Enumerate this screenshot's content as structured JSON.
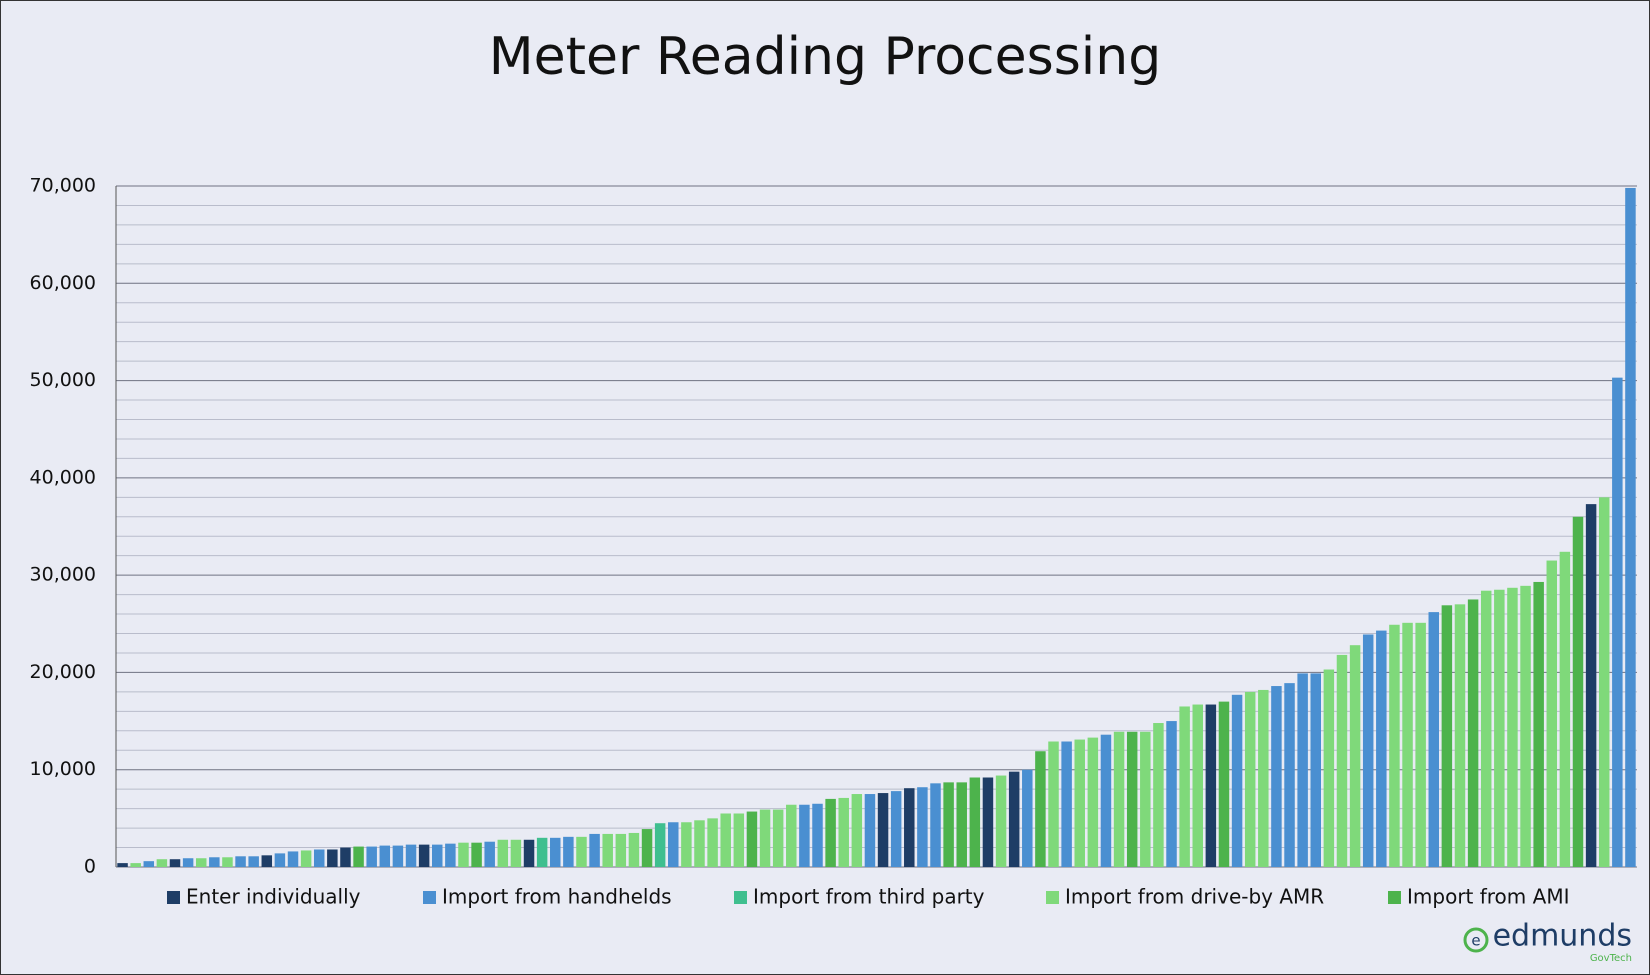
{
  "chart_data": {
    "type": "bar",
    "title": "Meter Reading Processing",
    "ylim": [
      0,
      70000
    ],
    "yticks": [
      {
        "value": 0,
        "label": "0"
      },
      {
        "value": 10000,
        "label": "10,000"
      },
      {
        "value": 20000,
        "label": "20,000"
      },
      {
        "value": 30000,
        "label": "30,000"
      },
      {
        "value": 40000,
        "label": "40,000"
      },
      {
        "value": 50000,
        "label": "50,000"
      },
      {
        "value": 60000,
        "label": "60,000"
      },
      {
        "value": 70000,
        "label": "70,000"
      }
    ],
    "minor_yticks": [
      2000,
      4000,
      6000,
      8000,
      12000,
      14000,
      16000,
      18000,
      22000,
      24000,
      26000,
      28000,
      32000,
      34000,
      36000,
      38000,
      42000,
      44000,
      46000,
      48000,
      52000,
      54000,
      56000,
      58000,
      62000,
      64000,
      66000,
      68000
    ],
    "grid": true,
    "legend": "bottom",
    "series": [
      {
        "name": "Enter individually",
        "color": "#1e3d66",
        "values": [
          400,
          null,
          null,
          null,
          800,
          null,
          null,
          null,
          null,
          null,
          null,
          1200,
          null,
          null,
          null,
          null,
          1800,
          2000,
          null,
          null,
          null,
          null,
          null,
          2300,
          null,
          null,
          null,
          null,
          null,
          null,
          null,
          2800,
          null,
          null,
          null,
          null,
          null,
          null,
          null,
          null,
          null,
          null,
          null,
          null,
          null,
          null,
          null,
          null,
          null,
          null,
          null,
          null,
          null,
          null,
          null,
          null,
          null,
          null,
          7600,
          null,
          8100,
          null,
          null,
          null,
          null,
          null,
          9200,
          null,
          9800,
          null,
          null,
          null,
          null,
          null,
          null,
          null,
          null,
          null,
          null,
          null,
          null,
          null,
          null,
          16700,
          null,
          null,
          null,
          null,
          null,
          null,
          null,
          null,
          null,
          null,
          null,
          null,
          null,
          null,
          null,
          null,
          null,
          null,
          null,
          null,
          null,
          null,
          null,
          null,
          null,
          null,
          null,
          null,
          37300,
          null,
          null,
          null
        ]
      },
      {
        "name": "Import from handhelds",
        "color": "#4a8fd1",
        "values": [
          null,
          null,
          600,
          null,
          null,
          900,
          null,
          1000,
          null,
          1100,
          1100,
          null,
          1400,
          1600,
          null,
          1800,
          null,
          null,
          null,
          2100,
          2200,
          2200,
          2300,
          null,
          2300,
          2400,
          null,
          null,
          2600,
          null,
          null,
          null,
          null,
          3000,
          3100,
          null,
          3400,
          null,
          null,
          null,
          null,
          null,
          4600,
          null,
          null,
          null,
          null,
          null,
          null,
          null,
          null,
          null,
          6400,
          6500,
          null,
          null,
          null,
          7500,
          null,
          7800,
          null,
          8200,
          8600,
          null,
          null,
          null,
          null,
          null,
          null,
          10000,
          null,
          null,
          12900,
          null,
          null,
          13600,
          null,
          null,
          null,
          null,
          15000,
          null,
          null,
          null,
          null,
          17700,
          null,
          null,
          18600,
          18900,
          19900,
          19900,
          null,
          null,
          null,
          23900,
          24300,
          null,
          null,
          null,
          26200,
          null,
          null,
          null,
          null,
          null,
          null,
          null,
          null,
          null,
          null,
          null,
          null,
          null,
          50300,
          69800
        ]
      },
      {
        "name": "Import from third party",
        "color": "#3fbf8f",
        "values": [
          null,
          null,
          null,
          null,
          null,
          null,
          null,
          null,
          null,
          null,
          null,
          null,
          null,
          null,
          null,
          null,
          null,
          null,
          null,
          null,
          null,
          null,
          null,
          null,
          null,
          null,
          null,
          null,
          null,
          null,
          null,
          null,
          3000,
          null,
          null,
          null,
          null,
          null,
          null,
          null,
          null,
          4500,
          null,
          null,
          null,
          null,
          null,
          null,
          null,
          null,
          null,
          null,
          null,
          null,
          null,
          null,
          null,
          null,
          null,
          null,
          null,
          null,
          null,
          null,
          null,
          null,
          null,
          null,
          null,
          null,
          null,
          null,
          null,
          null,
          null,
          null,
          null,
          null,
          null,
          null,
          null,
          null,
          null,
          null,
          null,
          null,
          null,
          null,
          null,
          null,
          null,
          null,
          null,
          null,
          null,
          null,
          null,
          null,
          null,
          null,
          null,
          null,
          null,
          null,
          null,
          null,
          null,
          null,
          null,
          null,
          null,
          null,
          null,
          null,
          null,
          null
        ]
      },
      {
        "name": "Import from drive-by AMR",
        "color": "#7fd97a",
        "values": [
          null,
          400,
          null,
          800,
          null,
          null,
          900,
          null,
          1000,
          null,
          null,
          null,
          null,
          null,
          1700,
          null,
          null,
          null,
          null,
          null,
          null,
          null,
          null,
          null,
          null,
          null,
          2500,
          null,
          null,
          2800,
          2800,
          null,
          null,
          null,
          null,
          3100,
          null,
          3400,
          3400,
          3500,
          null,
          null,
          null,
          4600,
          4800,
          5000,
          5500,
          5500,
          null,
          5900,
          5900,
          6400,
          null,
          null,
          null,
          7100,
          7500,
          null,
          null,
          null,
          null,
          null,
          null,
          null,
          null,
          null,
          null,
          9400,
          null,
          null,
          null,
          12900,
          null,
          13100,
          13300,
          null,
          13900,
          null,
          13900,
          14800,
          null,
          16500,
          16700,
          null,
          null,
          null,
          18000,
          18200,
          null,
          null,
          null,
          null,
          20300,
          21800,
          22800,
          null,
          null,
          24900,
          25100,
          25100,
          null,
          null,
          27000,
          null,
          28400,
          28500,
          28700,
          28900,
          null,
          31500,
          32400,
          null,
          null,
          38000,
          null,
          null
        ]
      },
      {
        "name": "Import from AMI",
        "color": "#4db34c",
        "values": [
          null,
          null,
          null,
          null,
          null,
          null,
          null,
          null,
          null,
          null,
          null,
          null,
          null,
          null,
          null,
          null,
          null,
          null,
          2100,
          null,
          null,
          null,
          null,
          null,
          null,
          null,
          null,
          2500,
          null,
          null,
          null,
          null,
          null,
          null,
          null,
          null,
          null,
          null,
          null,
          null,
          3900,
          null,
          null,
          null,
          null,
          null,
          null,
          null,
          5700,
          null,
          null,
          null,
          null,
          null,
          7000,
          null,
          null,
          null,
          null,
          null,
          null,
          null,
          null,
          8700,
          8700,
          9200,
          null,
          null,
          null,
          null,
          11900,
          null,
          null,
          null,
          null,
          null,
          null,
          13900,
          null,
          null,
          null,
          null,
          null,
          null,
          17000,
          null,
          null,
          null,
          null,
          null,
          null,
          null,
          null,
          null,
          null,
          null,
          null,
          null,
          null,
          null,
          null,
          26900,
          null,
          27500,
          null,
          null,
          null,
          null,
          29300,
          null,
          null,
          36000,
          null,
          null,
          null,
          null
        ]
      }
    ],
    "logo": {
      "name": "edmunds",
      "tagline": "GovTech"
    }
  }
}
